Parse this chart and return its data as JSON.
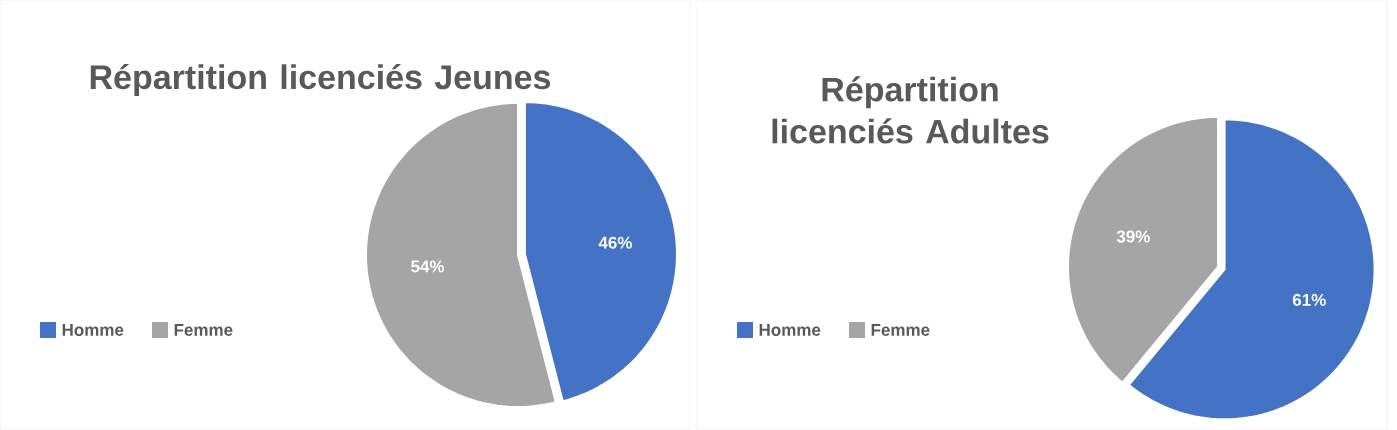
{
  "chart_data": [
    {
      "type": "pie",
      "title": "Répartition licenciés Jeunes",
      "categories": [
        "Homme",
        "Femme"
      ],
      "values": [
        46,
        54
      ],
      "value_labels": [
        "46%",
        "54%"
      ],
      "colors": [
        "#4472c4",
        "#a5a5a5"
      ],
      "legend": "left"
    },
    {
      "type": "pie",
      "title": "Répartition licenciés Adultes",
      "categories": [
        "Homme",
        "Femme"
      ],
      "values": [
        61,
        39
      ],
      "value_labels": [
        "61%",
        "39%"
      ],
      "colors": [
        "#4472c4",
        "#a5a5a5"
      ],
      "legend": "left"
    }
  ]
}
